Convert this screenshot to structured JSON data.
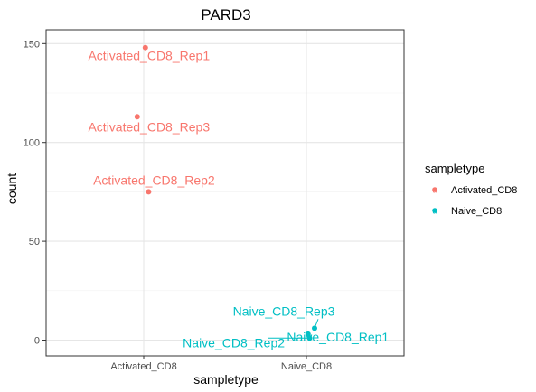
{
  "chart_data": {
    "type": "scatter",
    "title": "PARD3",
    "xlabel": "sampletype",
    "ylabel": "count",
    "categories": [
      "Activated_CD8",
      "Naive_CD8"
    ],
    "yticks": [
      0,
      50,
      100,
      150
    ],
    "ylim": [
      -8,
      157
    ],
    "grid": true,
    "legend": {
      "title": "sampletype",
      "position": "right",
      "entries": [
        {
          "label": "Activated_CD8",
          "color": "#F8766D"
        },
        {
          "label": "Naive_CD8",
          "color": "#00BFC4"
        }
      ]
    },
    "points": [
      {
        "label": "Activated_CD8_Rep1",
        "category": "Activated_CD8",
        "y": 148,
        "jitter": 0.01,
        "color": "#F8766D"
      },
      {
        "label": "Activated_CD8_Rep3",
        "category": "Activated_CD8",
        "y": 113,
        "jitter": -0.04,
        "color": "#F8766D"
      },
      {
        "label": "Activated_CD8_Rep2",
        "category": "Activated_CD8",
        "y": 75,
        "jitter": 0.03,
        "color": "#F8766D"
      },
      {
        "label": "Naive_CD8_Rep3",
        "category": "Naive_CD8",
        "y": 6,
        "jitter": 0.05,
        "color": "#00BFC4"
      },
      {
        "label": "Naive_CD8_Rep1",
        "category": "Naive_CD8",
        "y": 3,
        "jitter": 0.01,
        "color": "#00BFC4"
      },
      {
        "label": "Naive_CD8_Rep2",
        "category": "Naive_CD8",
        "y": 1,
        "jitter": 0.02,
        "color": "#00BFC4"
      }
    ]
  }
}
